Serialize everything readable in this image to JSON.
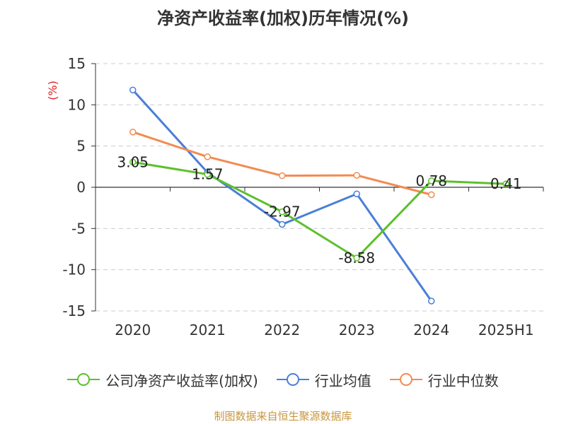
{
  "chart_data": {
    "type": "line",
    "title": "净资产收益率(加权)历年情况(%)",
    "ylabel": "(%)",
    "xlabel": "",
    "categories": [
      "2020",
      "2021",
      "2022",
      "2023",
      "2024",
      "2025H1"
    ],
    "ylim": [
      -15,
      15
    ],
    "yticks": [
      15,
      10,
      5,
      0,
      -5,
      -10,
      -15
    ],
    "grid": true,
    "legend_position": "bottom",
    "series": [
      {
        "name": "公司净资产收益率(加权)",
        "color": "#5cc02c",
        "values": [
          3.05,
          1.57,
          -2.97,
          -8.58,
          0.78,
          0.41
        ],
        "labels": [
          "3.05",
          "1.57",
          "-2.97",
          "-8.58",
          "0.78",
          "0.41"
        ]
      },
      {
        "name": "行业均值",
        "color": "#4a7fd8",
        "values": [
          11.8,
          1.8,
          -4.5,
          -0.8,
          -13.8,
          null
        ]
      },
      {
        "name": "行业中位数",
        "color": "#f28b52",
        "values": [
          6.7,
          3.7,
          1.4,
          1.45,
          -0.9,
          null
        ]
      }
    ]
  },
  "source": "制图数据来自恒生聚源数据库"
}
